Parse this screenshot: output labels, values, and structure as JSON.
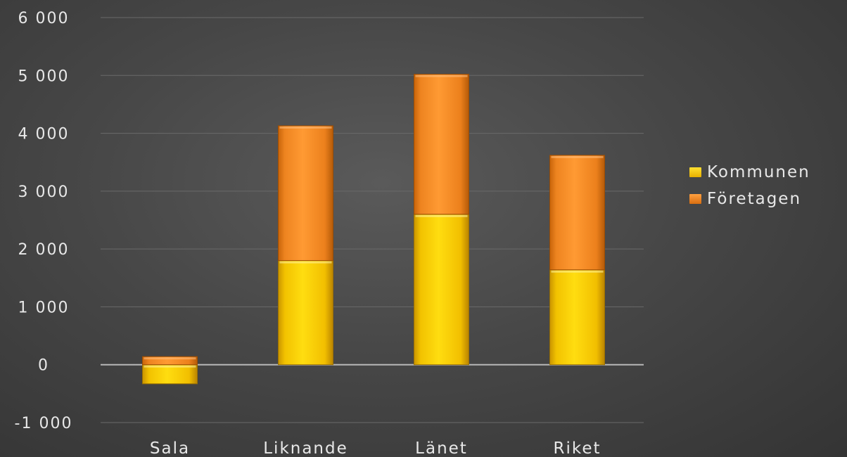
{
  "chart_data": {
    "type": "bar",
    "stacked": true,
    "categories": [
      "Sala",
      "Liknande",
      "Länet",
      "Riket"
    ],
    "series": [
      {
        "name": "Kommunen",
        "values": [
          -330,
          1800,
          2600,
          1640
        ],
        "color": "#f5c400"
      },
      {
        "name": "Företagen",
        "values": [
          140,
          2330,
          2420,
          1980
        ],
        "color": "#f08a1c"
      }
    ],
    "ylim": [
      -1000,
      6000
    ],
    "yticks": [
      -1000,
      0,
      1000,
      2000,
      3000,
      4000,
      5000,
      6000
    ],
    "ytick_labels": [
      "-1 000",
      "0",
      "1 000",
      "2 000",
      "3 000",
      "4 000",
      "5 000",
      "6 000"
    ],
    "grid": true,
    "legend_position": "right"
  }
}
